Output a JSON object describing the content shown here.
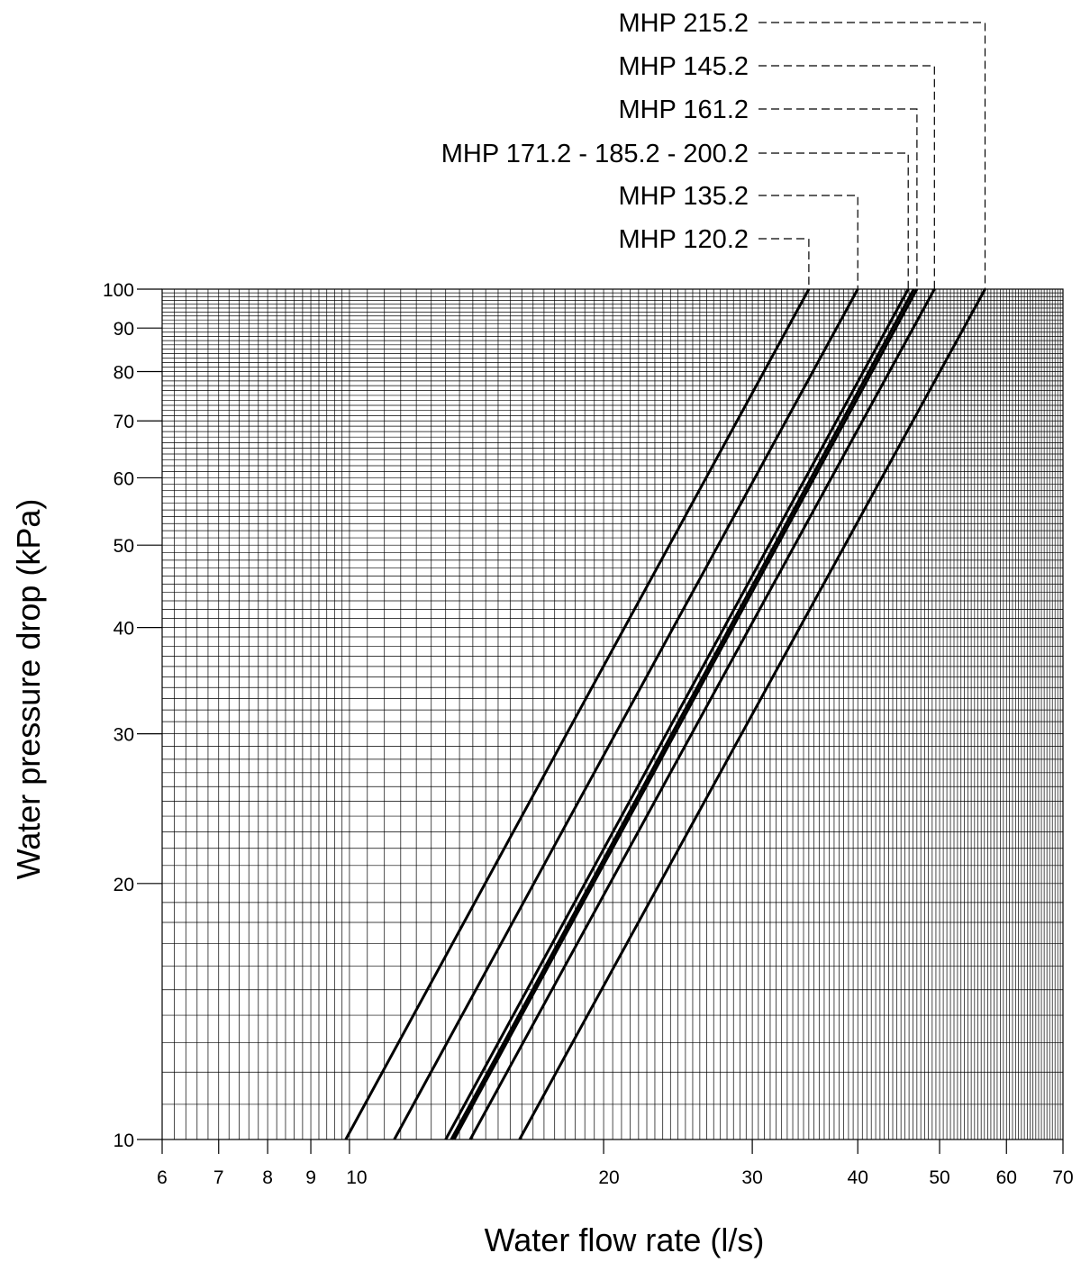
{
  "chart_data": {
    "type": "line",
    "xlabel": "Water flow rate (l/s)",
    "ylabel": "Water pressure drop (kPa)",
    "x_scale": "log",
    "y_scale": "log",
    "xlim": [
      6,
      70
    ],
    "ylim": [
      10,
      100
    ],
    "x_ticks": [
      "6",
      "7",
      "8",
      "9",
      "10",
      "20",
      "30",
      "40",
      "50",
      "60",
      "70"
    ],
    "y_ticks": [
      "10",
      "20",
      "30",
      "40",
      "50",
      "60",
      "70",
      "80",
      "90",
      "100"
    ],
    "grid": true,
    "line_color": "#000000",
    "series": [
      {
        "name": "MHP 120.2",
        "x": [
          9.9,
          35.0
        ],
        "y": [
          10,
          100
        ]
      },
      {
        "name": "MHP 135.2",
        "x": [
          11.3,
          40.0
        ],
        "y": [
          10,
          100
        ]
      },
      {
        "name": "MHP 171.2 - 185.2 - 200.2",
        "x": [
          13.0,
          45.9
        ],
        "y": [
          10,
          100
        ]
      },
      {
        "name": "MHP 161.2",
        "x": [
          13.3,
          47.0
        ],
        "y": [
          10,
          100
        ]
      },
      {
        "name": "MHP 145.2",
        "x": [
          13.9,
          49.3
        ],
        "y": [
          10,
          100
        ]
      },
      {
        "name": "MHP 215.2",
        "x": [
          15.9,
          56.6
        ],
        "y": [
          10,
          100
        ]
      },
      {
        "name": "",
        "x": [
          13.2,
          46.6
        ],
        "y": [
          10,
          100
        ]
      }
    ],
    "labels": [
      {
        "text": "MHP 215.2",
        "series": 5
      },
      {
        "text": "MHP 145.2",
        "series": 4
      },
      {
        "text": "MHP 161.2",
        "series": 3
      },
      {
        "text": "MHP 171.2 - 185.2 - 200.2",
        "series": 2
      },
      {
        "text": "MHP 135.2",
        "series": 1
      },
      {
        "text": "MHP 120.2",
        "series": 0
      }
    ]
  }
}
